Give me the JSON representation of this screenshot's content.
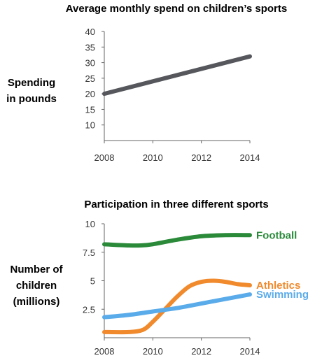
{
  "chart_data": [
    {
      "type": "line",
      "title": "Average monthly spend on children’s sports",
      "ylabel_lines": [
        "Spending",
        "in pounds"
      ],
      "xlabel": "",
      "x_ticks": [
        "2008",
        "2010",
        "2012",
        "2014"
      ],
      "y_ticks": [
        "10",
        "15",
        "20",
        "25",
        "30",
        "35",
        "40"
      ],
      "xlim": [
        2008,
        2014
      ],
      "ylim": [
        5,
        40
      ],
      "grid": false,
      "series": [
        {
          "color": "#55575c",
          "x": [
            2008,
            2014
          ],
          "values": [
            20,
            32
          ]
        }
      ]
    },
    {
      "type": "line",
      "title": "Participation in three different sports",
      "ylabel_lines": [
        "Number of",
        "children",
        "(millions)"
      ],
      "xlabel": "",
      "x_ticks": [
        "2008",
        "2010",
        "2012",
        "2014"
      ],
      "y_ticks": [
        "2.5",
        "5",
        "7.5",
        "10"
      ],
      "xlim": [
        2008,
        2014
      ],
      "ylim": [
        0,
        10
      ],
      "grid": false,
      "legend_placement": "right, inline at line ends",
      "series": [
        {
          "name": "Football",
          "color": "#2a8a3a",
          "x": [
            2008,
            2009,
            2009.5,
            2010,
            2011,
            2012,
            2013,
            2014
          ],
          "values": [
            8.2,
            8.1,
            8.1,
            8.2,
            8.6,
            8.9,
            9.0,
            9.0
          ]
        },
        {
          "name": "Athletics",
          "color": "#f08a2c",
          "x": [
            2008,
            2009,
            2009.6,
            2010,
            2010.5,
            2011,
            2011.5,
            2012,
            2012.5,
            2013,
            2013.5,
            2014
          ],
          "values": [
            0.5,
            0.5,
            0.7,
            1.4,
            2.5,
            3.6,
            4.5,
            4.9,
            5.0,
            4.9,
            4.7,
            4.6
          ]
        },
        {
          "name": "Swimming",
          "color": "#5aabea",
          "x": [
            2008,
            2009,
            2010,
            2011,
            2012,
            2013,
            2014
          ],
          "values": [
            1.8,
            2.0,
            2.3,
            2.6,
            3.0,
            3.4,
            3.8
          ]
        }
      ]
    }
  ]
}
